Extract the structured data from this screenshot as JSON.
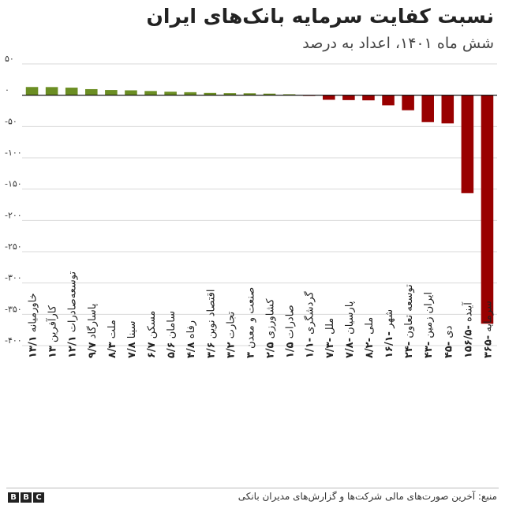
{
  "header": {
    "title": "نسبت کفایت سرمایه بانک‌های ایران",
    "subtitle": "شش ماه ۱۴۰۱، اعداد به درصد"
  },
  "footer": {
    "source": "منبع: آخرین صورت‌های مالی شرکت‌ها و گزارش‌های مدیران بانکی",
    "logo_letters": [
      "B",
      "B",
      "C"
    ]
  },
  "colors": {
    "positive": "#6b8e23",
    "negative": "#990000",
    "grid": "#d9d9d9",
    "zero_line": "#000000"
  },
  "chart_data": {
    "type": "bar",
    "title": "نسبت کفایت سرمایه بانک‌های ایران",
    "subtitle": "شش ماه ۱۴۰۱، اعداد به درصد",
    "ylim": [
      -400,
      50
    ],
    "yticks": [
      50,
      0,
      -50,
      -100,
      -150,
      -200,
      -250,
      -300,
      -350,
      -400
    ],
    "ytick_labels": [
      "۵۰",
      "۰",
      "-۵۰",
      "-۱۰۰",
      "-۱۵۰",
      "-۲۰۰",
      "-۲۵۰",
      "-۳۰۰",
      "-۳۵۰",
      "-۴۰۰"
    ],
    "grid": true,
    "categories": [
      "خاورمیانه",
      "کارآفرین",
      "توسعه‌صادرات",
      "پاسارگاد",
      "ملت",
      "سینا",
      "مسکن",
      "سامان",
      "رفاه",
      "اقتصاد نوین",
      "تجارت",
      "صنعت و معدن",
      "کشاورزی",
      "صادرات",
      "گردشگری",
      "ملل",
      "پارسیان",
      "ملی",
      "شهر",
      "توسعه تعاون",
      "ایران زمین",
      "دی",
      "آینده",
      "سرمایه"
    ],
    "value_labels": [
      "۱۳/۱",
      "۱۳",
      "۱۲/۱",
      "۹/۷",
      "۸/۳",
      "۷/۸",
      "۶/۷",
      "۵/۶",
      "۴/۸",
      "۳/۶",
      "۳/۲",
      "۳",
      "۲/۵",
      "۱/۵",
      "-۱/۱",
      "-۷/۳",
      "-۷/۸",
      "-۸/۲",
      "-۱۶/۱",
      "-۲۴",
      "-۴۳",
      "-۴۵",
      "-۱۵۶/۵",
      "-۳۶۵"
    ],
    "values": [
      13.1,
      13,
      12.1,
      9.7,
      8.3,
      7.8,
      6.7,
      5.6,
      4.8,
      3.6,
      3.2,
      3,
      2.5,
      1.5,
      -1.1,
      -7.3,
      -7.8,
      -8.2,
      -16.1,
      -24,
      -43,
      -45,
      -156.5,
      -365
    ]
  }
}
